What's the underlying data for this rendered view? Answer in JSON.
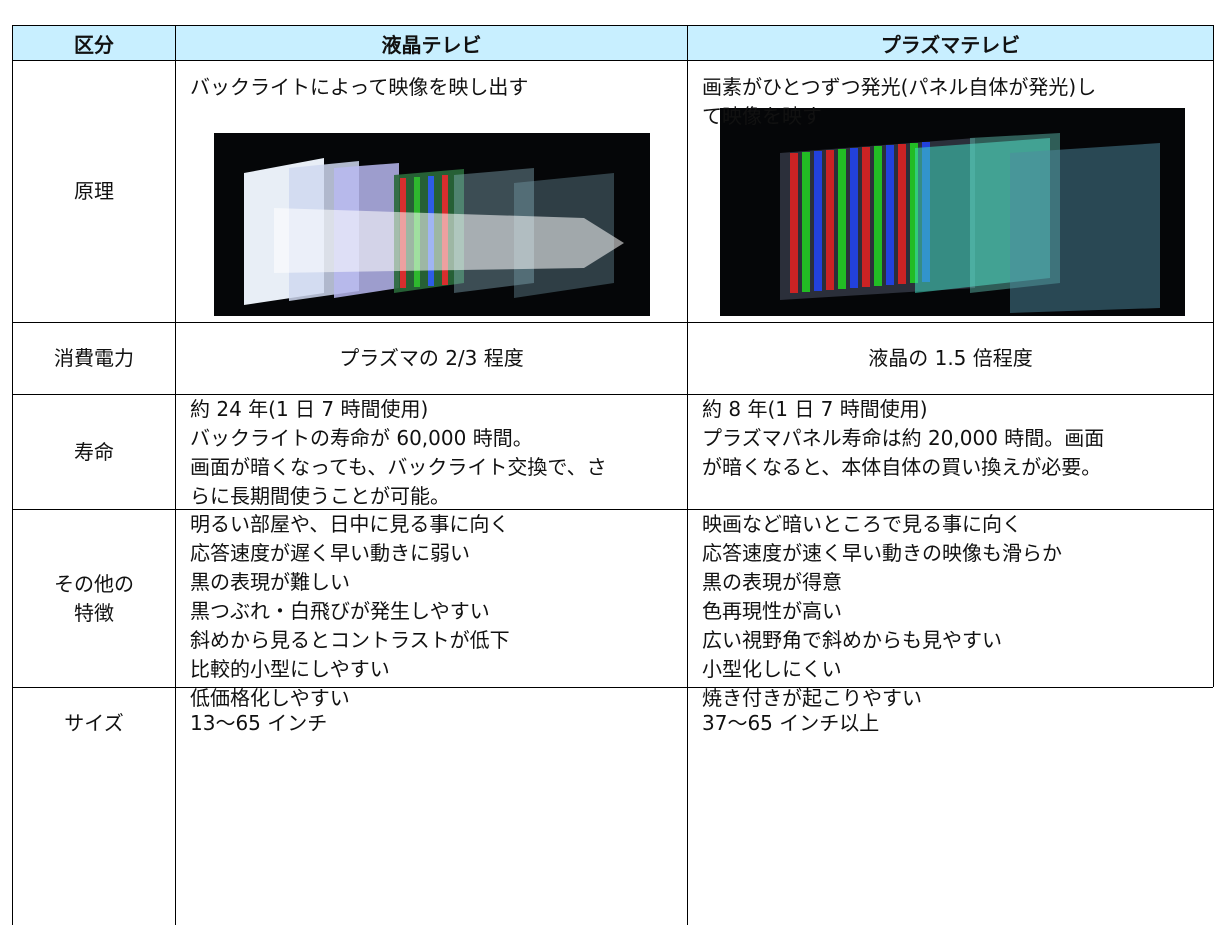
{
  "table": {
    "header": [
      "区分",
      "液晶テレビ",
      "プラズマテレビ"
    ],
    "rows": [
      [
        [
          "原理"
        ],
        [
          "バックライトによって映像を映し出す"
        ],
        [
          "画素がひとつずつ発光(パネル自体が発光)し",
          "て映像を映す"
        ]
      ],
      [
        [
          "消費電力"
        ],
        [
          "プラズマの 2/3 程度"
        ],
        [
          "液晶の 1.5 倍程度"
        ]
      ],
      [
        [
          "寿命"
        ],
        [
          "約 24 年(1 日 7 時間使用)",
          "バックライトの寿命が 60,000 時間。",
          "画面が暗くなっても、バックライト交換で、さ",
          "らに長期間使うことが可能。"
        ],
        [
          "約 8 年(1 日 7 時間使用)",
          "プラズマパネル寿命は約 20,000 時間。画面",
          "が暗くなると、本体自体の買い換えが必要。"
        ]
      ],
      [
        [
          "その他の",
          "特徴"
        ],
        [
          "明るい部屋や、日中に見る事に向く",
          "応答速度が遅く早い動きに弱い",
          "黒の表現が難しい",
          "黒つぶれ・白飛びが発生しやすい",
          "斜めから見るとコントラストが低下",
          "比較的小型にしやすい",
          "低価格化しやすい"
        ],
        [
          "映画など暗いところで見る事に向く",
          "応答速度が速く早い動きの映像も滑らか",
          "黒の表現が得意",
          "色再現性が高い",
          "広い視野角で斜めからも見やすい",
          "小型化しにくい",
          "焼き付きが起こりやすい"
        ]
      ],
      [
        [
          "サイズ"
        ],
        [
          "13〜65 インチ"
        ],
        [
          "37〜65 インチ以上"
        ]
      ]
    ]
  }
}
